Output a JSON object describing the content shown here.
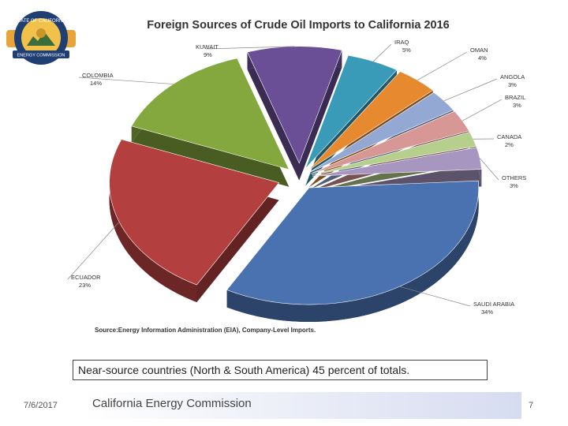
{
  "chart_data": {
    "type": "pie",
    "title": "Foreign Sources of Crude Oil Imports to California 2016",
    "slices": [
      {
        "label": "SAUDI ARABIA",
        "value_label": "34%",
        "value": 34,
        "color": "#4a72b0"
      },
      {
        "label": "ECUADOR",
        "value_label": "23%",
        "value": 23,
        "color": "#b3403e"
      },
      {
        "label": "COLOMBIA",
        "value_label": "14%",
        "value": 14,
        "color": "#85a83e"
      },
      {
        "label": "KUWAIT",
        "value_label": "9%",
        "value": 9,
        "color": "#6a4e96"
      },
      {
        "label": "IRAQ",
        "value_label": "5%",
        "value": 5,
        "color": "#3a9bb8"
      },
      {
        "label": "OMAN",
        "value_label": "4%",
        "value": 4,
        "color": "#e6892f"
      },
      {
        "label": "ANGOLA",
        "value_label": "3%",
        "value": 3,
        "color": "#93a9d4"
      },
      {
        "label": "BRAZIL",
        "value_label": "3%",
        "value": 3,
        "color": "#d69795"
      },
      {
        "label": "CANADA",
        "value_label": "2%",
        "value": 2,
        "color": "#b6cf8c"
      },
      {
        "label": "OTHERS",
        "value_label": "3%",
        "value": 3,
        "color": "#a797c0"
      }
    ],
    "source": "Source:Energy Information Administration (EIA), Company-Level Imports."
  },
  "caption": "Near-source countries (North & South America) 45 percent of totals.",
  "footer": {
    "date": "7/6/2017",
    "organization": "California Energy Commission",
    "page": "7"
  },
  "logo": {
    "top_text": "STATE OF CALIFORNIA",
    "bottom_text": "ENERGY COMMISSION"
  }
}
